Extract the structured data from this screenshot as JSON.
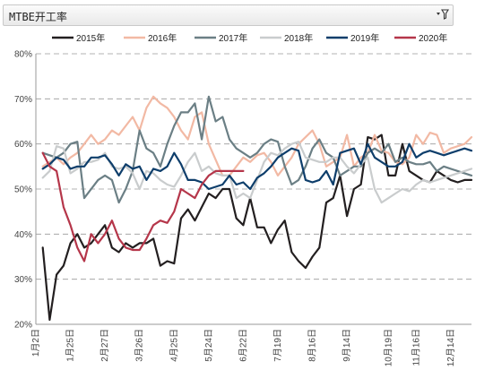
{
  "header": {
    "title": "MTBE开工率",
    "filter_icon": "filter-dropdown-icon"
  },
  "chart_data": {
    "type": "line",
    "title": "",
    "xlabel": "",
    "ylabel": "",
    "ylim": [
      0.2,
      0.8
    ],
    "y_ticks": [
      "20%",
      "30%",
      "40%",
      "50%",
      "60%",
      "70%",
      "80%"
    ],
    "x_ticks": [
      "1月2日",
      "1月25日",
      "2月27日",
      "3月26日",
      "4月25日",
      "5月24日",
      "6月22日",
      "7月19日",
      "8月16日",
      "9月14日",
      "10月19日",
      "11月16日",
      "12月14日"
    ],
    "x_tick_positions": [
      0,
      5,
      10,
      15,
      20,
      25,
      30,
      35,
      40,
      45,
      51,
      55,
      60
    ],
    "grid": true,
    "legend_position": "top",
    "series": [
      {
        "name": "2015年",
        "color": "#231f20",
        "x": [
          1,
          2,
          3,
          4,
          5,
          6,
          7,
          8,
          9,
          10,
          11,
          12,
          13,
          14,
          15,
          16,
          17,
          18,
          19,
          20,
          21,
          22,
          23,
          24,
          25,
          26,
          27,
          28,
          29,
          30,
          31,
          32,
          33,
          34,
          35,
          36,
          37,
          38,
          39,
          40,
          41,
          42,
          43,
          44,
          45,
          46,
          47,
          48,
          49,
          50,
          51,
          52,
          53,
          54,
          55,
          56,
          57,
          58,
          59,
          60,
          61,
          62,
          63
        ],
        "values": [
          0.37,
          0.21,
          0.31,
          0.33,
          0.38,
          0.4,
          0.37,
          0.38,
          0.4,
          0.42,
          0.37,
          0.36,
          0.38,
          0.37,
          0.38,
          0.38,
          0.39,
          0.33,
          0.34,
          0.335,
          0.435,
          0.455,
          0.43,
          0.46,
          0.49,
          0.48,
          0.5,
          0.5,
          0.435,
          0.42,
          0.48,
          0.415,
          0.415,
          0.38,
          0.41,
          0.43,
          0.36,
          0.34,
          0.325,
          0.35,
          0.37,
          0.47,
          0.48,
          0.53,
          0.44,
          0.5,
          0.51,
          0.615,
          0.61,
          0.62,
          0.53,
          0.53,
          0.6,
          0.54,
          0.53,
          0.52,
          0.515,
          0.54,
          0.53,
          0.52,
          0.515,
          0.52,
          0.52
        ]
      },
      {
        "name": "2016年",
        "color": "#f2b9a4",
        "x": [
          1,
          2,
          3,
          4,
          5,
          6,
          7,
          8,
          9,
          10,
          11,
          12,
          13,
          14,
          15,
          16,
          17,
          18,
          19,
          20,
          21,
          22,
          23,
          24,
          25,
          26,
          27,
          28,
          29,
          30,
          31,
          32,
          33,
          34,
          35,
          36,
          37,
          38,
          39,
          40,
          41,
          42,
          43,
          44,
          45,
          46,
          47,
          48,
          49,
          50,
          51,
          52,
          53,
          54,
          55,
          56,
          57,
          58,
          59,
          60,
          61,
          62,
          63
        ],
        "values": [
          0.55,
          0.56,
          0.57,
          0.555,
          0.57,
          0.58,
          0.6,
          0.62,
          0.6,
          0.61,
          0.63,
          0.62,
          0.64,
          0.66,
          0.63,
          0.68,
          0.705,
          0.69,
          0.68,
          0.66,
          0.63,
          0.61,
          0.66,
          0.67,
          0.6,
          0.565,
          0.53,
          0.53,
          0.55,
          0.57,
          0.56,
          0.575,
          0.58,
          0.56,
          0.53,
          0.55,
          0.57,
          0.6,
          0.615,
          0.63,
          0.6,
          0.55,
          0.56,
          0.57,
          0.62,
          0.55,
          0.57,
          0.58,
          0.62,
          0.585,
          0.58,
          0.56,
          0.555,
          0.57,
          0.62,
          0.6,
          0.625,
          0.62,
          0.58,
          0.59,
          0.595,
          0.6,
          0.615
        ]
      },
      {
        "name": "2017年",
        "color": "#6b7f85",
        "x": [
          1,
          2,
          3,
          4,
          5,
          6,
          7,
          8,
          9,
          10,
          11,
          12,
          13,
          14,
          15,
          16,
          17,
          18,
          19,
          20,
          21,
          22,
          23,
          24,
          25,
          26,
          27,
          28,
          29,
          30,
          31,
          32,
          33,
          34,
          35,
          36,
          37,
          38,
          39,
          40,
          41,
          42,
          43,
          44,
          45,
          46,
          47,
          48,
          49,
          50,
          51,
          52,
          53,
          54,
          55,
          56,
          57,
          58,
          59,
          60,
          61,
          62,
          63
        ],
        "values": [
          0.58,
          0.575,
          0.57,
          0.58,
          0.6,
          0.605,
          0.48,
          0.5,
          0.52,
          0.53,
          0.52,
          0.47,
          0.5,
          0.54,
          0.63,
          0.59,
          0.58,
          0.55,
          0.6,
          0.64,
          0.67,
          0.67,
          0.69,
          0.61,
          0.705,
          0.65,
          0.66,
          0.61,
          0.59,
          0.58,
          0.57,
          0.58,
          0.6,
          0.61,
          0.605,
          0.55,
          0.51,
          0.52,
          0.55,
          0.59,
          0.61,
          0.58,
          0.57,
          0.53,
          0.54,
          0.55,
          0.55,
          0.58,
          0.59,
          0.58,
          0.6,
          0.56,
          0.57,
          0.56,
          0.555,
          0.555,
          0.56,
          0.54,
          0.55,
          0.545,
          0.54,
          0.535,
          0.53
        ]
      },
      {
        "name": "2018年",
        "color": "#c9cccd",
        "x": [
          1,
          2,
          3,
          4,
          5,
          6,
          7,
          8,
          9,
          10,
          11,
          12,
          13,
          14,
          15,
          16,
          17,
          18,
          19,
          20,
          21,
          22,
          23,
          24,
          25,
          26,
          27,
          28,
          29,
          30,
          31,
          32,
          33,
          34,
          35,
          36,
          37,
          38,
          39,
          40,
          41,
          42,
          43,
          44,
          45,
          46,
          47,
          48,
          49,
          50,
          51,
          52,
          53,
          54,
          55,
          56,
          57,
          58,
          59,
          60,
          61,
          62,
          63
        ],
        "values": [
          0.525,
          0.54,
          0.595,
          0.59,
          0.535,
          0.545,
          0.56,
          0.56,
          0.565,
          0.58,
          0.55,
          0.545,
          0.55,
          0.535,
          0.5,
          0.54,
          0.535,
          0.52,
          0.51,
          0.505,
          0.53,
          0.56,
          0.58,
          0.54,
          0.55,
          0.535,
          0.53,
          0.53,
          0.48,
          0.49,
          0.48,
          0.52,
          0.56,
          0.58,
          0.575,
          0.59,
          0.6,
          0.605,
          0.57,
          0.565,
          0.56,
          0.56,
          0.57,
          0.57,
          0.55,
          0.535,
          0.555,
          0.57,
          0.5,
          0.47,
          0.48,
          0.49,
          0.5,
          0.495,
          0.51,
          0.52,
          0.515,
          0.52,
          0.525,
          0.53,
          0.535,
          0.54,
          0.545
        ]
      },
      {
        "name": "2019年",
        "color": "#0e3e6b",
        "x": [
          1,
          2,
          3,
          4,
          5,
          6,
          7,
          8,
          9,
          10,
          11,
          12,
          13,
          14,
          15,
          16,
          17,
          18,
          19,
          20,
          21,
          22,
          23,
          24,
          25,
          26,
          27,
          28,
          29,
          30,
          31,
          32,
          33,
          34,
          35,
          36,
          37,
          38,
          39,
          40,
          41,
          42,
          43,
          44,
          45,
          46,
          47,
          48,
          49,
          50,
          51,
          52,
          53,
          54,
          55,
          56,
          57,
          58,
          59,
          60,
          61,
          62,
          63
        ],
        "values": [
          0.545,
          0.555,
          0.57,
          0.565,
          0.545,
          0.55,
          0.55,
          0.57,
          0.57,
          0.575,
          0.555,
          0.53,
          0.555,
          0.545,
          0.55,
          0.52,
          0.545,
          0.54,
          0.55,
          0.58,
          0.555,
          0.52,
          0.52,
          0.515,
          0.5,
          0.505,
          0.51,
          0.53,
          0.51,
          0.515,
          0.5,
          0.525,
          0.535,
          0.55,
          0.57,
          0.58,
          0.59,
          0.585,
          0.52,
          0.515,
          0.52,
          0.54,
          0.51,
          0.58,
          0.585,
          0.59,
          0.555,
          0.6,
          0.57,
          0.56,
          0.55,
          0.55,
          0.56,
          0.6,
          0.57,
          0.58,
          0.585,
          0.58,
          0.575,
          0.58,
          0.585,
          0.59,
          0.585
        ]
      },
      {
        "name": "2020年",
        "color": "#b5364a",
        "x": [
          1,
          2,
          3,
          4,
          5,
          6,
          7,
          8,
          9,
          10,
          11,
          12,
          13,
          14,
          15,
          16,
          17,
          18,
          19,
          20,
          21,
          22,
          23,
          24,
          25,
          26,
          27,
          28,
          29,
          30
        ],
        "values": [
          0.58,
          0.55,
          0.54,
          0.46,
          0.42,
          0.37,
          0.34,
          0.4,
          0.38,
          0.4,
          0.43,
          0.39,
          0.37,
          0.365,
          0.365,
          0.39,
          0.42,
          0.43,
          0.425,
          0.45,
          0.5,
          0.49,
          0.48,
          0.51,
          0.53,
          0.54,
          0.54,
          0.54,
          0.54,
          0.54
        ]
      }
    ]
  }
}
